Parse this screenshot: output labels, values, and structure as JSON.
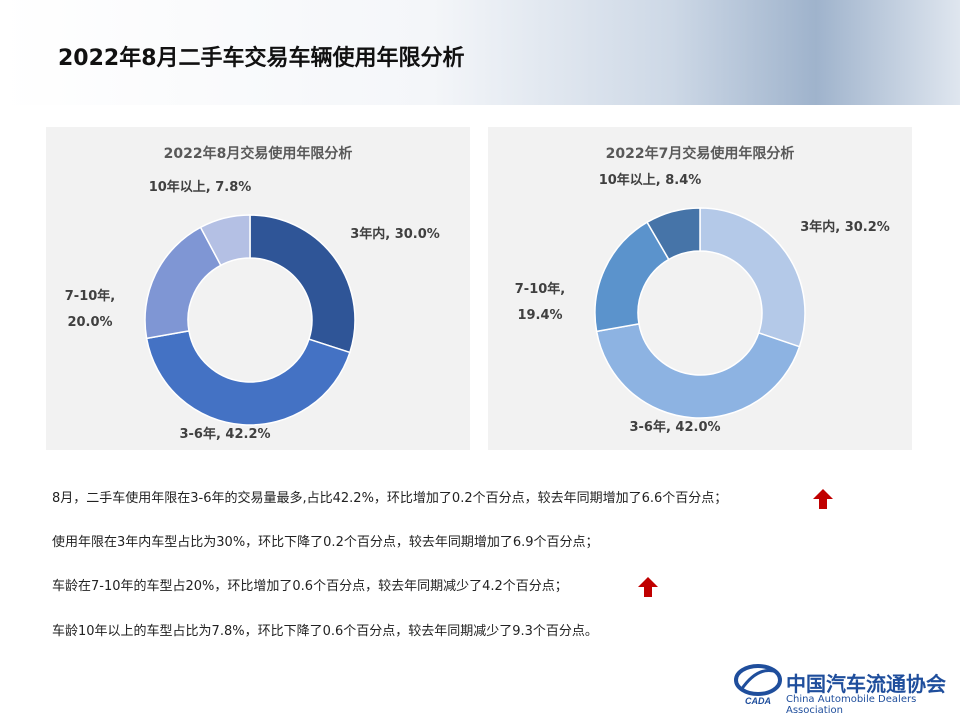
{
  "title": "2022年8月二手车交易车辆使用年限分析",
  "chart_data": [
    {
      "type": "donut",
      "title": "2022年8月交易使用年限分析",
      "categories": [
        "3年内",
        "3-6年",
        "7-10年",
        "10年以上"
      ],
      "values": [
        30.0,
        42.2,
        20.0,
        7.8
      ],
      "value_labels": [
        "3年内, 30.0%",
        "3-6年, 42.2%",
        "7-10年, 20.0%",
        "10年以上, 7.8%"
      ],
      "colors": [
        "#2f5597",
        "#4472c4",
        "#7f96d4",
        "#b4c0e4"
      ]
    },
    {
      "type": "donut",
      "title": "2022年7月交易使用年限分析",
      "categories": [
        "3年内",
        "3-6年",
        "7-10年",
        "10年以上"
      ],
      "values": [
        30.2,
        42.0,
        19.4,
        8.4
      ],
      "value_labels": [
        "3年内, 30.2%",
        "3-6年, 42.0%",
        "7-10年, 19.4%",
        "10年以上, 8.4%"
      ],
      "colors": [
        "#b4c9e8",
        "#8db3e2",
        "#5b93cc",
        "#4674a8"
      ]
    }
  ],
  "notes": [
    "8月，二手车使用年限在3-6年的交易量最多,占比42.2%，环比增加了0.2个百分点，较去年同期增加了6.6个百分点；",
    "使用年限在3年内车型占比为30%，环比下降了0.2个百分点，较去年同期增加了6.9个百分点；",
    "车龄在7-10年的车型占20%，环比增加了0.6个百分点，较去年同期减少了4.2个百分点；",
    "车龄10年以上的车型占比为7.8%，环比下降了0.6个百分点，较去年同期减少了9.3个百分点。"
  ],
  "logo": {
    "mark": "CADA",
    "name": "中国汽车流通协会",
    "english": "China Automobile Dealers Association"
  }
}
